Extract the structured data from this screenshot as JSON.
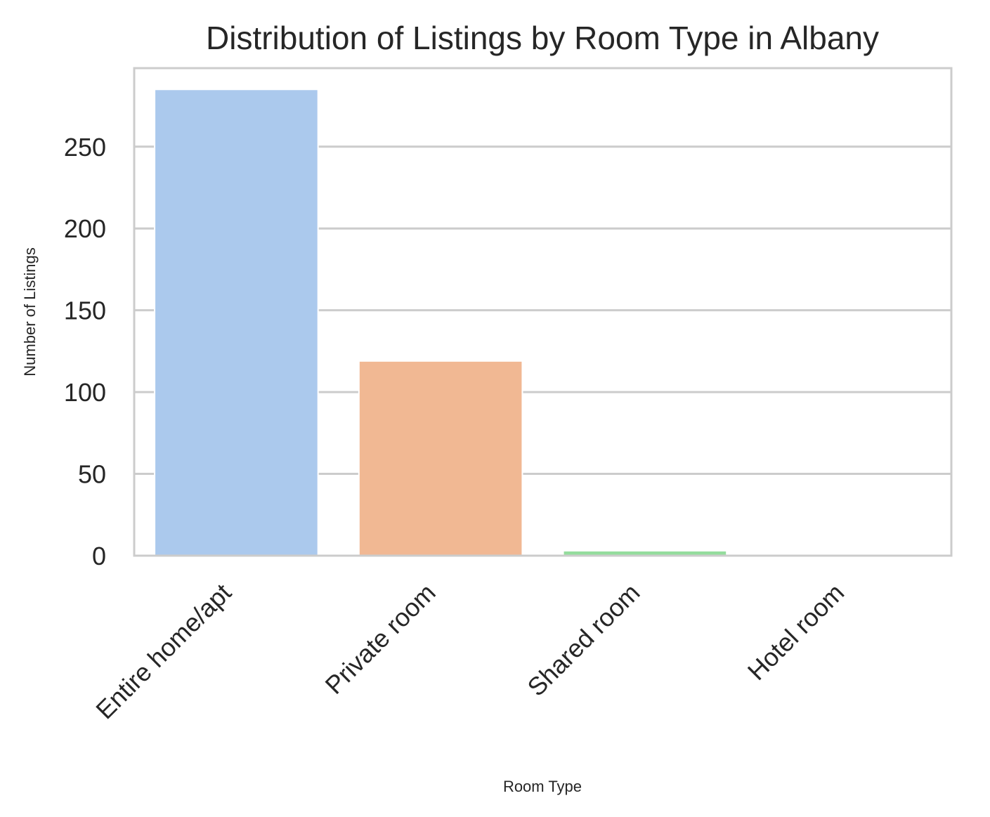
{
  "chart_data": {
    "type": "bar",
    "title": "Distribution of Listings by Room Type in Albany",
    "xlabel": "Room Type",
    "ylabel": "Number of Listings",
    "categories": [
      "Entire home/apt",
      "Private room",
      "Shared room",
      "Hotel room"
    ],
    "values": [
      285,
      119,
      3,
      0
    ],
    "colors": [
      "#abc9ed",
      "#f1b893",
      "#94dd9d",
      "#e89d9a"
    ],
    "yticks": [
      "0",
      "50",
      "100",
      "150",
      "200",
      "250"
    ],
    "ylim": [
      0,
      298
    ],
    "grid": true,
    "grid_color": "#cccccc",
    "legend": "none"
  }
}
